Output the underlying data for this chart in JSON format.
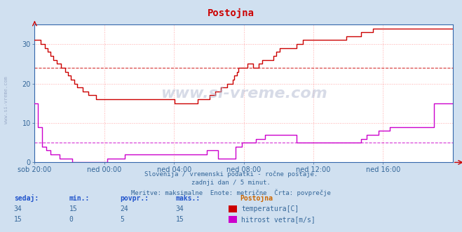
{
  "title": "Postojna",
  "bg_color": "#d0e0f0",
  "plot_bg_color": "#ffffff",
  "grid_color": "#ffaaaa",
  "x_labels": [
    "sob 20:00",
    "ned 00:00",
    "ned 04:00",
    "ned 08:00",
    "ned 12:00",
    "ned 16:00"
  ],
  "x_ticks_norm": [
    0.0,
    0.1667,
    0.3333,
    0.5,
    0.6667,
    0.8333
  ],
  "ylim": [
    0,
    35
  ],
  "yticks": [
    0,
    10,
    20,
    30
  ],
  "temp_color": "#cc0000",
  "wind_color": "#cc00cc",
  "temp_avg_line": 24,
  "wind_avg_line": 5,
  "subtitle1": "Slovenija / vremenski podatki - ročne postaje.",
  "subtitle2": "zadnji dan / 5 minut.",
  "subtitle3": "Meritve: maksimalne  Enote: metrične  Črta: povprečje",
  "legend_title": "Postojna",
  "legend_label1": "temperatura[C]",
  "legend_label2": "hitrost vetra[m/s]",
  "table_headers": [
    "sedaj:",
    "min.:",
    "povpr.:",
    "maks.:"
  ],
  "table_temp": [
    34,
    15,
    24,
    34
  ],
  "table_wind": [
    15,
    0,
    5,
    15
  ],
  "watermark": "www.si-vreme.com",
  "temp_data": [
    31,
    31,
    31,
    31,
    30,
    30,
    30,
    29,
    29,
    28,
    28,
    27,
    27,
    26,
    26,
    25,
    25,
    25,
    24,
    24,
    24,
    23,
    23,
    22,
    22,
    21,
    21,
    20,
    20,
    19,
    19,
    19,
    19,
    18,
    18,
    18,
    18,
    17,
    17,
    17,
    17,
    17,
    16,
    16,
    16,
    16,
    16,
    16,
    16,
    16,
    16,
    16,
    16,
    16,
    16,
    16,
    16,
    16,
    16,
    16,
    16,
    16,
    16,
    16,
    16,
    16,
    16,
    16,
    16,
    16,
    16,
    16,
    16,
    16,
    16,
    16,
    16,
    16,
    16,
    16,
    16,
    16,
    16,
    16,
    16,
    16,
    16,
    16,
    16,
    16,
    16,
    16,
    16,
    16,
    16,
    16,
    15,
    15,
    15,
    15,
    15,
    15,
    15,
    15,
    15,
    15,
    15,
    15,
    15,
    15,
    15,
    15,
    16,
    16,
    16,
    16,
    16,
    16,
    16,
    16,
    17,
    17,
    17,
    17,
    18,
    18,
    18,
    18,
    19,
    19,
    19,
    19,
    20,
    20,
    20,
    20,
    21,
    22,
    22,
    23,
    24,
    24,
    24,
    24,
    24,
    24,
    25,
    25,
    25,
    25,
    24,
    24,
    24,
    24,
    25,
    25,
    26,
    26,
    26,
    26,
    26,
    26,
    26,
    26,
    27,
    27,
    28,
    28,
    29,
    29,
    29,
    29,
    29,
    29,
    29,
    29,
    29,
    29,
    29,
    29,
    30,
    30,
    30,
    30,
    31,
    31,
    31,
    31,
    31,
    31,
    31,
    31,
    31,
    31,
    31,
    31,
    31,
    31,
    31,
    31,
    31,
    31,
    31,
    31,
    31,
    31,
    31,
    31,
    31,
    31,
    31,
    31,
    31,
    31,
    32,
    32,
    32,
    32,
    32,
    32,
    32,
    32,
    32,
    32,
    33,
    33,
    33,
    33,
    33,
    33,
    33,
    33,
    34,
    34,
    34,
    34,
    34,
    34,
    34,
    34,
    34,
    34,
    34,
    34,
    34,
    34,
    34,
    34,
    34,
    34,
    34,
    34,
    34,
    34,
    34,
    34,
    34,
    34,
    34,
    34,
    34,
    34,
    34,
    34,
    34,
    34,
    34,
    34,
    34,
    34,
    34,
    34,
    34,
    34,
    34,
    34,
    34,
    34,
    34,
    34,
    34,
    34,
    34,
    34,
    34,
    34,
    34,
    34
  ],
  "wind_data": [
    15,
    15,
    9,
    9,
    9,
    4,
    4,
    4,
    3,
    3,
    3,
    2,
    2,
    2,
    2,
    2,
    2,
    1,
    1,
    1,
    1,
    1,
    1,
    1,
    1,
    1,
    0,
    0,
    0,
    0,
    0,
    0,
    0,
    0,
    0,
    0,
    0,
    0,
    0,
    0,
    0,
    0,
    0,
    0,
    0,
    0,
    0,
    0,
    0,
    0,
    1,
    1,
    1,
    1,
    1,
    1,
    1,
    1,
    1,
    1,
    1,
    1,
    2,
    2,
    2,
    2,
    2,
    2,
    2,
    2,
    2,
    2,
    2,
    2,
    2,
    2,
    2,
    2,
    2,
    2,
    2,
    2,
    2,
    2,
    2,
    2,
    2,
    2,
    2,
    2,
    2,
    2,
    2,
    2,
    2,
    2,
    2,
    2,
    2,
    2,
    2,
    2,
    2,
    2,
    2,
    2,
    2,
    2,
    2,
    2,
    2,
    2,
    2,
    2,
    2,
    2,
    2,
    2,
    3,
    3,
    3,
    3,
    3,
    3,
    3,
    3,
    1,
    1,
    1,
    1,
    1,
    1,
    1,
    1,
    1,
    1,
    1,
    1,
    4,
    4,
    4,
    4,
    5,
    5,
    5,
    5,
    5,
    5,
    5,
    5,
    5,
    5,
    6,
    6,
    6,
    6,
    6,
    6,
    7,
    7,
    7,
    7,
    7,
    7,
    7,
    7,
    7,
    7,
    7,
    7,
    7,
    7,
    7,
    7,
    7,
    7,
    7,
    7,
    7,
    7,
    5,
    5,
    5,
    5,
    5,
    5,
    5,
    5,
    5,
    5,
    5,
    5,
    5,
    5,
    5,
    5,
    5,
    5,
    5,
    5,
    5,
    5,
    5,
    5,
    5,
    5,
    5,
    5,
    5,
    5,
    5,
    5,
    5,
    5,
    5,
    5,
    5,
    5,
    5,
    5,
    5,
    5,
    5,
    5,
    6,
    6,
    6,
    6,
    7,
    7,
    7,
    7,
    7,
    7,
    7,
    7,
    8,
    8,
    8,
    8,
    8,
    8,
    8,
    8,
    9,
    9,
    9,
    9,
    9,
    9,
    9,
    9,
    9,
    9,
    9,
    9,
    9,
    9,
    9,
    9,
    9,
    9,
    9,
    9,
    9,
    9,
    9,
    9,
    9,
    9,
    9,
    9,
    9,
    9,
    15,
    15,
    15,
    15,
    15,
    15,
    15,
    15,
    15,
    15,
    15,
    15,
    15,
    15
  ]
}
